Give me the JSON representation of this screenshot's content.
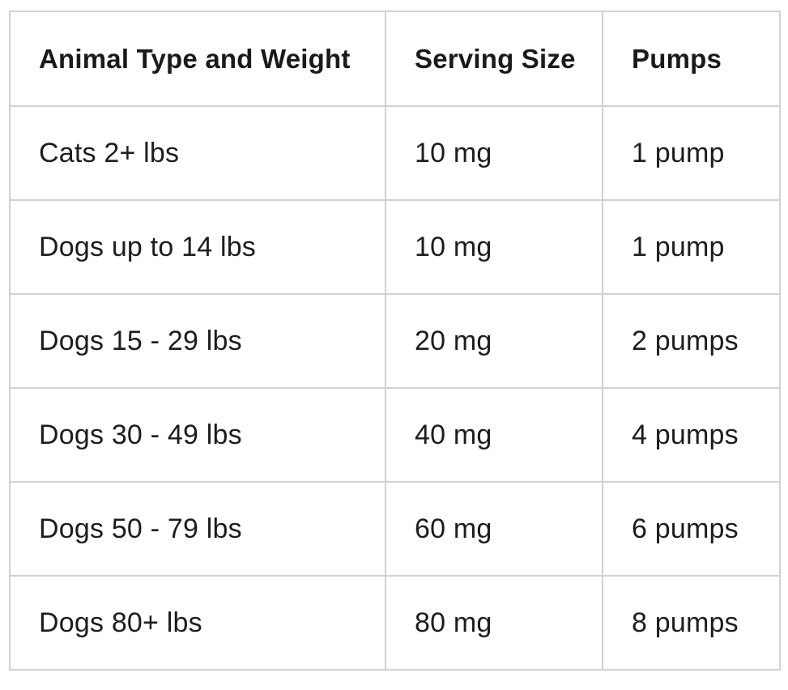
{
  "page": {
    "background_color": "#ffffff"
  },
  "table": {
    "border_color": "#d1d1d1",
    "header_text_color": "#1a1a1a",
    "body_text_color": "#1d1d1d",
    "columns": [
      {
        "label": "Animal Type and Weight"
      },
      {
        "label": "Serving Size"
      },
      {
        "label": "Pumps"
      }
    ],
    "rows": [
      {
        "animal": "Cats 2+ lbs",
        "serving": "10 mg",
        "pumps": "1 pump"
      },
      {
        "animal": "Dogs up to 14 lbs",
        "serving": "10 mg",
        "pumps": "1 pump"
      },
      {
        "animal": "Dogs 15 - 29 lbs",
        "serving": "20 mg",
        "pumps": "2 pumps"
      },
      {
        "animal": "Dogs 30 - 49 lbs",
        "serving": "40 mg",
        "pumps": "4 pumps"
      },
      {
        "animal": "Dogs 50 - 79 lbs",
        "serving": "60 mg",
        "pumps": "6 pumps"
      },
      {
        "animal": "Dogs 80+ lbs",
        "serving": "80 mg",
        "pumps": "8 pumps"
      }
    ]
  }
}
